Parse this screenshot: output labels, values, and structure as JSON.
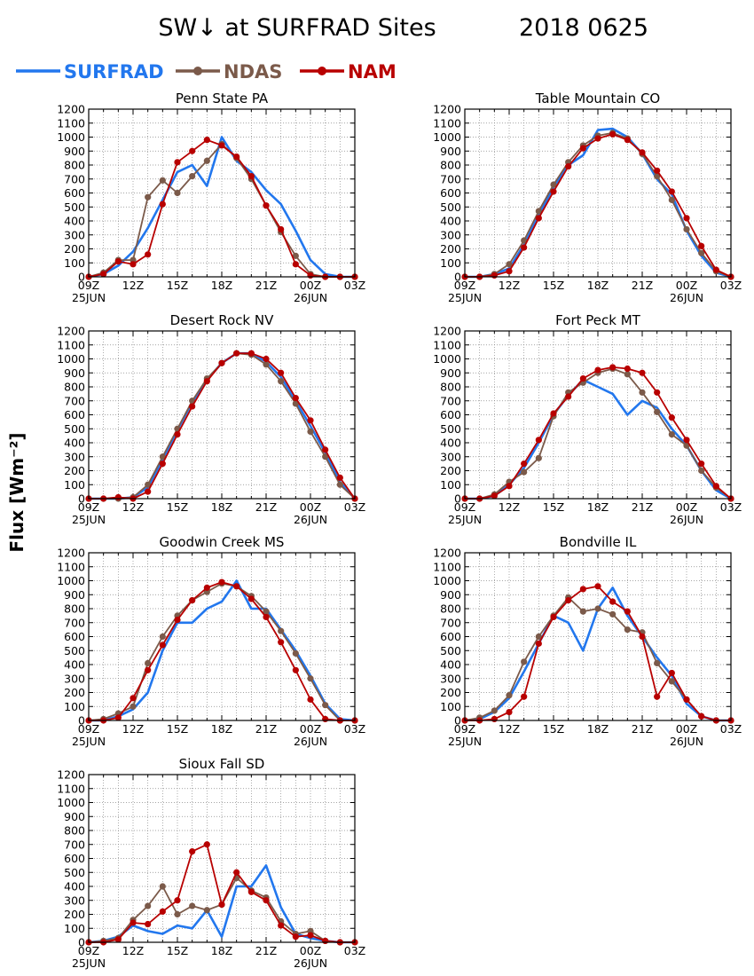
{
  "figure": {
    "title": "SW↓ at SURFRAD Sites",
    "date": "2018 0625",
    "ylabel": "Flux [Wm⁻²]"
  },
  "legend": [
    {
      "name": "SURFRAD",
      "color": "#2277ee",
      "marker": false
    },
    {
      "name": "NDAS",
      "color": "#7b5a4a",
      "marker": true
    },
    {
      "name": "NAM",
      "color": "#b80000",
      "marker": true
    }
  ],
  "axes": {
    "xticks": [
      "09Z",
      "12Z",
      "15Z",
      "18Z",
      "21Z",
      "00Z",
      "03Z"
    ],
    "xticks_hours": [
      9,
      12,
      15,
      18,
      21,
      24,
      27
    ],
    "xsublabels": [
      "25JUN",
      "26JUN"
    ],
    "xlim": [
      9,
      27
    ],
    "ylim": [
      0,
      1200
    ],
    "yticks": [
      0,
      100,
      200,
      300,
      400,
      500,
      600,
      700,
      800,
      900,
      1000,
      1100,
      1200
    ],
    "grid": true
  },
  "chart_data": [
    {
      "type": "line",
      "title": "Penn State PA",
      "x_hours": [
        9,
        10,
        11,
        12,
        13,
        14,
        15,
        16,
        17,
        18,
        19,
        20,
        21,
        22,
        23,
        24,
        25,
        26,
        27
      ],
      "series": [
        {
          "name": "NDAS",
          "values": [
            0,
            30,
            120,
            120,
            570,
            690,
            600,
            720,
            830,
            950,
            850,
            700,
            510,
            320,
            150,
            20,
            0,
            0,
            0
          ]
        },
        {
          "name": "NAM",
          "values": [
            0,
            20,
            110,
            90,
            160,
            520,
            820,
            900,
            980,
            940,
            860,
            720,
            510,
            340,
            90,
            10,
            0,
            0,
            0
          ]
        },
        {
          "name": "SURFRAD",
          "values": [
            0,
            20,
            80,
            180,
            350,
            550,
            750,
            800,
            650,
            1000,
            830,
            750,
            620,
            520,
            330,
            120,
            20,
            0,
            0
          ]
        }
      ]
    },
    {
      "type": "line",
      "title": "Table Mountain CO",
      "x_hours": [
        9,
        10,
        11,
        12,
        13,
        14,
        15,
        16,
        17,
        18,
        19,
        20,
        21,
        22,
        23,
        24,
        25,
        26,
        27
      ],
      "series": [
        {
          "name": "NDAS",
          "values": [
            0,
            0,
            20,
            90,
            260,
            470,
            660,
            820,
            940,
            1010,
            1030,
            990,
            880,
            720,
            550,
            340,
            170,
            40,
            0
          ]
        },
        {
          "name": "NAM",
          "values": [
            0,
            0,
            10,
            40,
            210,
            420,
            610,
            790,
            920,
            990,
            1020,
            980,
            890,
            760,
            610,
            420,
            220,
            50,
            0
          ]
        },
        {
          "name": "SURFRAD",
          "values": [
            0,
            0,
            20,
            60,
            230,
            440,
            640,
            800,
            870,
            1050,
            1060,
            1000,
            880,
            700,
            590,
            330,
            150,
            30,
            0
          ]
        }
      ]
    },
    {
      "type": "line",
      "title": "Desert Rock NV",
      "x_hours": [
        9,
        10,
        11,
        12,
        13,
        14,
        15,
        16,
        17,
        18,
        19,
        20,
        21,
        22,
        23,
        24,
        25,
        26,
        27
      ],
      "series": [
        {
          "name": "NDAS",
          "values": [
            0,
            0,
            0,
            10,
            100,
            300,
            500,
            700,
            860,
            970,
            1040,
            1030,
            960,
            840,
            680,
            480,
            300,
            100,
            0
          ]
        },
        {
          "name": "NAM",
          "values": [
            0,
            0,
            10,
            0,
            50,
            250,
            460,
            660,
            840,
            970,
            1040,
            1040,
            1000,
            900,
            720,
            560,
            350,
            150,
            0
          ]
        },
        {
          "name": "SURFRAD",
          "values": [
            0,
            0,
            0,
            10,
            80,
            280,
            490,
            690,
            850,
            970,
            1040,
            1040,
            980,
            870,
            700,
            520,
            330,
            120,
            0
          ]
        }
      ]
    },
    {
      "type": "line",
      "title": "Fort Peck MT",
      "x_hours": [
        9,
        10,
        11,
        12,
        13,
        14,
        15,
        16,
        17,
        18,
        19,
        20,
        21,
        22,
        23,
        24,
        25,
        26,
        27
      ],
      "series": [
        {
          "name": "NDAS",
          "values": [
            0,
            0,
            30,
            120,
            190,
            290,
            590,
            760,
            830,
            900,
            930,
            890,
            760,
            620,
            460,
            380,
            200,
            80,
            0
          ]
        },
        {
          "name": "NAM",
          "values": [
            0,
            0,
            20,
            90,
            250,
            420,
            610,
            730,
            860,
            920,
            940,
            930,
            900,
            760,
            580,
            420,
            250,
            90,
            0
          ]
        },
        {
          "name": "SURFRAD",
          "values": [
            0,
            0,
            20,
            100,
            220,
            400,
            600,
            740,
            850,
            800,
            750,
            600,
            700,
            650,
            500,
            380,
            200,
            60,
            0
          ]
        }
      ]
    },
    {
      "type": "line",
      "title": "Goodwin Creek MS",
      "x_hours": [
        9,
        10,
        11,
        12,
        13,
        14,
        15,
        16,
        17,
        18,
        19,
        20,
        21,
        22,
        23,
        24,
        25,
        26,
        27
      ],
      "series": [
        {
          "name": "NDAS",
          "values": [
            0,
            10,
            50,
            100,
            410,
            600,
            750,
            860,
            920,
            980,
            960,
            890,
            780,
            640,
            480,
            300,
            110,
            0,
            0
          ]
        },
        {
          "name": "NAM",
          "values": [
            0,
            0,
            20,
            160,
            360,
            540,
            720,
            860,
            950,
            990,
            960,
            870,
            740,
            560,
            360,
            150,
            10,
            0,
            0
          ]
        },
        {
          "name": "SURFRAD",
          "values": [
            0,
            0,
            30,
            80,
            200,
            500,
            700,
            700,
            800,
            850,
            1000,
            800,
            800,
            650,
            500,
            320,
            120,
            10,
            0
          ]
        }
      ]
    },
    {
      "type": "line",
      "title": "Bondville IL",
      "x_hours": [
        9,
        10,
        11,
        12,
        13,
        14,
        15,
        16,
        17,
        18,
        19,
        20,
        21,
        22,
        23,
        24,
        25,
        26,
        27
      ],
      "series": [
        {
          "name": "NDAS",
          "values": [
            0,
            20,
            70,
            180,
            420,
            600,
            750,
            880,
            780,
            800,
            760,
            650,
            630,
            410,
            280,
            150,
            30,
            0,
            0
          ]
        },
        {
          "name": "NAM",
          "values": [
            0,
            0,
            10,
            60,
            170,
            550,
            740,
            860,
            940,
            960,
            850,
            780,
            600,
            170,
            340,
            150,
            30,
            0,
            0
          ]
        },
        {
          "name": "SURFRAD",
          "values": [
            0,
            10,
            60,
            160,
            350,
            550,
            750,
            700,
            500,
            800,
            950,
            750,
            600,
            450,
            320,
            120,
            30,
            0,
            0
          ]
        }
      ]
    },
    {
      "type": "line",
      "title": "Sioux Fall SD",
      "x_hours": [
        9,
        10,
        11,
        12,
        13,
        14,
        15,
        16,
        17,
        18,
        19,
        20,
        21,
        22,
        23,
        24,
        25,
        26,
        27
      ],
      "series": [
        {
          "name": "NDAS",
          "values": [
            0,
            10,
            30,
            160,
            260,
            400,
            200,
            260,
            230,
            270,
            460,
            370,
            320,
            150,
            60,
            80,
            10,
            0,
            0
          ]
        },
        {
          "name": "NAM",
          "values": [
            0,
            0,
            20,
            140,
            130,
            220,
            300,
            650,
            700,
            270,
            500,
            360,
            300,
            120,
            40,
            50,
            10,
            0,
            0
          ]
        },
        {
          "name": "SURFRAD",
          "values": [
            0,
            10,
            40,
            120,
            80,
            60,
            120,
            100,
            230,
            40,
            400,
            400,
            550,
            250,
            60,
            30,
            10,
            0,
            0
          ]
        }
      ]
    }
  ]
}
